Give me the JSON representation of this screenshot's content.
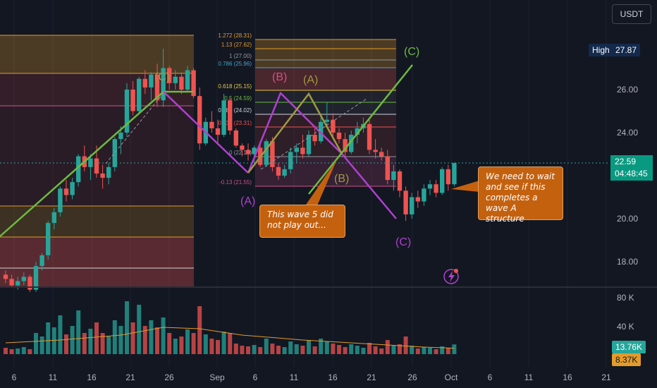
{
  "currency": "USDT",
  "colors": {
    "background": "#131722",
    "up": "#26a69a",
    "down": "#ef5350",
    "grid": "#1e2230",
    "wave_green": "#6dbb3f",
    "wave_purple": "#b040d0",
    "wave_pink": "#d0508a",
    "wave_olive": "#a09a40",
    "callout": "#c4610f",
    "volume_ma": "#e39b2a"
  },
  "price_scale": {
    "ticks": [
      "26.00",
      "24.00",
      "22.00",
      "20.00",
      "18.00"
    ],
    "high_label": "High",
    "high_value": "27.87",
    "last_price": "22.59",
    "countdown": "04:48:45"
  },
  "volume_scale": {
    "ticks": [
      "80 K",
      "40 K"
    ],
    "current_volume": "13.76K",
    "ma_volume": "8.37K"
  },
  "time_axis": {
    "labels": [
      "6",
      "11",
      "16",
      "21",
      "26",
      "Sep",
      "6",
      "11",
      "16",
      "21",
      "26",
      "Oct",
      "6",
      "11",
      "16",
      "21"
    ]
  },
  "fib_levels": [
    {
      "label": "1.272 (28.31)",
      "color": "#e39b2a"
    },
    {
      "label": "1.13 (27.62)",
      "color": "#e39b2a"
    },
    {
      "label": "1 (27.00)",
      "color": "#9598a1"
    },
    {
      "label": "0.786 (25.96)",
      "color": "#3fa5c9"
    },
    {
      "label": "0.618 (25.15)",
      "color": "#e8c840"
    },
    {
      "label": "0.5 (24.59)",
      "color": "#6dbb3f"
    },
    {
      "label": "0.382 (24.02)",
      "color": "#d1d4dc"
    },
    {
      "label": "0.236 (23.31)",
      "color": "#ef5350"
    },
    {
      "label": "0 (22.18)",
      "color": "#9598a1"
    },
    {
      "label": "-0.13 (21.55)",
      "color": "#d0508a"
    }
  ],
  "wave_labels": {
    "c_left": "(C)",
    "c_top": "(C)",
    "a_lower": "(A)",
    "b_upper": "(B)",
    "a_upper": "(A)",
    "b_lower": "(B)",
    "c_lower": "(C)"
  },
  "callouts": {
    "left": "This wave 5 did not play out...",
    "right": "We need to wait and see if this completes a wave A structure"
  },
  "chart_data": {
    "type": "candlestick",
    "y_range": [
      16.6,
      29.5
    ],
    "volume_range": [
      0,
      100000
    ],
    "candles": [
      [
        1,
        17.4,
        17.6,
        17.0,
        17.2,
        9000
      ],
      [
        2,
        17.2,
        17.4,
        16.8,
        16.9,
        7000
      ],
      [
        3,
        16.9,
        17.3,
        16.7,
        17.1,
        8000
      ],
      [
        4,
        17.1,
        17.5,
        16.9,
        17.3,
        10000
      ],
      [
        5,
        17.3,
        17.4,
        16.6,
        16.7,
        7000
      ],
      [
        6,
        16.7,
        18.0,
        16.6,
        17.8,
        30000
      ],
      [
        7,
        17.8,
        18.4,
        17.6,
        18.3,
        25000
      ],
      [
        8,
        18.3,
        19.9,
        18.1,
        19.8,
        45000
      ],
      [
        9,
        19.8,
        20.5,
        19.5,
        20.3,
        38000
      ],
      [
        10,
        20.3,
        21.5,
        20.1,
        21.4,
        55000
      ],
      [
        11,
        21.4,
        21.8,
        20.8,
        21.1,
        28000
      ],
      [
        12,
        21.1,
        21.9,
        20.9,
        21.7,
        40000
      ],
      [
        13,
        21.7,
        23.0,
        21.5,
        22.9,
        62000
      ],
      [
        14,
        22.9,
        23.4,
        22.2,
        22.4,
        30000
      ],
      [
        15,
        22.4,
        23.0,
        21.8,
        22.8,
        36000
      ],
      [
        16,
        22.8,
        23.4,
        21.9,
        22.1,
        45000
      ],
      [
        17,
        22.1,
        22.5,
        21.4,
        21.9,
        30000
      ],
      [
        18,
        21.9,
        22.6,
        21.6,
        22.4,
        25000
      ],
      [
        19,
        22.4,
        23.8,
        22.2,
        23.7,
        48000
      ],
      [
        20,
        23.7,
        24.3,
        23.0,
        24.0,
        40000
      ],
      [
        21,
        24.0,
        26.3,
        23.8,
        26.0,
        75000
      ],
      [
        22,
        26.0,
        26.4,
        24.8,
        25.0,
        45000
      ],
      [
        23,
        25.0,
        26.6,
        24.9,
        26.5,
        70000
      ],
      [
        24,
        26.5,
        26.9,
        25.8,
        26.1,
        40000
      ],
      [
        25,
        26.1,
        26.8,
        25.5,
        26.7,
        48000
      ],
      [
        26,
        26.7,
        27.2,
        25.2,
        25.5,
        38000
      ],
      [
        27,
        25.5,
        27.9,
        25.2,
        27.0,
        52000
      ],
      [
        28,
        27.0,
        27.1,
        26.0,
        26.3,
        30000
      ],
      [
        29,
        26.3,
        26.9,
        26.0,
        26.6,
        22000
      ],
      [
        30,
        26.6,
        26.8,
        25.8,
        26.0,
        25000
      ],
      [
        31,
        26.0,
        27.1,
        25.9,
        26.9,
        35000
      ],
      [
        32,
        26.9,
        27.0,
        25.6,
        25.7,
        30000
      ],
      [
        33,
        25.7,
        26.1,
        23.2,
        23.5,
        68000
      ],
      [
        34,
        23.5,
        24.7,
        23.4,
        24.5,
        28000
      ],
      [
        35,
        24.5,
        25.0,
        24.0,
        24.2,
        22000
      ],
      [
        36,
        24.2,
        24.6,
        23.5,
        23.9,
        20000
      ],
      [
        37,
        23.9,
        25.8,
        23.8,
        25.5,
        32000
      ],
      [
        38,
        25.5,
        25.6,
        23.9,
        24.1,
        30000
      ],
      [
        39,
        24.1,
        24.2,
        23.3,
        23.4,
        15000
      ],
      [
        40,
        23.4,
        23.5,
        22.9,
        23.2,
        12000
      ],
      [
        41,
        23.2,
        23.5,
        22.7,
        23.0,
        11000
      ],
      [
        42,
        23.0,
        23.4,
        22.6,
        23.3,
        13000
      ],
      [
        43,
        23.3,
        23.6,
        22.4,
        22.5,
        10000
      ],
      [
        44,
        22.5,
        23.7,
        22.4,
        23.6,
        22000
      ],
      [
        45,
        23.6,
        23.8,
        22.2,
        22.4,
        15000
      ],
      [
        46,
        22.4,
        22.6,
        21.8,
        22.0,
        12000
      ],
      [
        47,
        22.0,
        22.5,
        21.9,
        22.3,
        10000
      ],
      [
        48,
        22.3,
        23.3,
        22.1,
        23.1,
        18000
      ],
      [
        49,
        23.1,
        23.5,
        22.6,
        23.3,
        14000
      ],
      [
        50,
        23.3,
        23.9,
        22.8,
        23.0,
        12000
      ],
      [
        51,
        23.0,
        24.1,
        22.9,
        23.9,
        20000
      ],
      [
        52,
        23.9,
        24.2,
        23.4,
        23.6,
        11000
      ],
      [
        53,
        23.6,
        24.7,
        23.5,
        24.5,
        22000
      ],
      [
        54,
        24.5,
        25.4,
        24.3,
        24.6,
        18000
      ],
      [
        55,
        24.6,
        24.9,
        23.8,
        24.0,
        15000
      ],
      [
        56,
        24.0,
        24.2,
        23.5,
        23.7,
        13000
      ],
      [
        57,
        23.7,
        24.0,
        22.9,
        23.1,
        10000
      ],
      [
        58,
        23.1,
        24.1,
        23.0,
        23.9,
        14000
      ],
      [
        59,
        23.9,
        24.5,
        23.5,
        24.2,
        12000
      ],
      [
        60,
        24.2,
        24.7,
        24.0,
        24.4,
        9000
      ],
      [
        61,
        24.4,
        24.6,
        23.0,
        23.2,
        16000
      ],
      [
        62,
        23.2,
        23.7,
        22.8,
        23.1,
        11000
      ],
      [
        63,
        23.1,
        23.3,
        22.7,
        22.9,
        8000
      ],
      [
        64,
        22.9,
        23.2,
        21.6,
        21.8,
        20000
      ],
      [
        65,
        21.8,
        22.5,
        21.3,
        22.2,
        12000
      ],
      [
        66,
        22.2,
        22.3,
        21.0,
        21.3,
        14000
      ],
      [
        67,
        21.3,
        21.5,
        19.9,
        20.2,
        25000
      ],
      [
        68,
        20.2,
        21.2,
        20.0,
        21.0,
        12000
      ],
      [
        69,
        21.0,
        21.3,
        20.5,
        20.8,
        8000
      ],
      [
        70,
        20.8,
        21.6,
        20.6,
        21.4,
        10000
      ],
      [
        71,
        21.4,
        21.8,
        21.1,
        21.6,
        9000
      ],
      [
        72,
        21.6,
        21.8,
        21.0,
        21.2,
        7000
      ],
      [
        73,
        21.2,
        22.4,
        21.1,
        22.3,
        11000
      ],
      [
        74,
        22.3,
        22.5,
        21.3,
        21.6,
        9000
      ],
      [
        75,
        21.6,
        22.6,
        21.5,
        22.59,
        13760
      ]
    ],
    "volume_ma": [
      [
        1,
        16000
      ],
      [
        10,
        20000
      ],
      [
        20,
        27000
      ],
      [
        27,
        38000
      ],
      [
        33,
        36000
      ],
      [
        40,
        27000
      ],
      [
        50,
        20000
      ],
      [
        60,
        15000
      ],
      [
        70,
        10000
      ],
      [
        75,
        8370
      ]
    ]
  }
}
